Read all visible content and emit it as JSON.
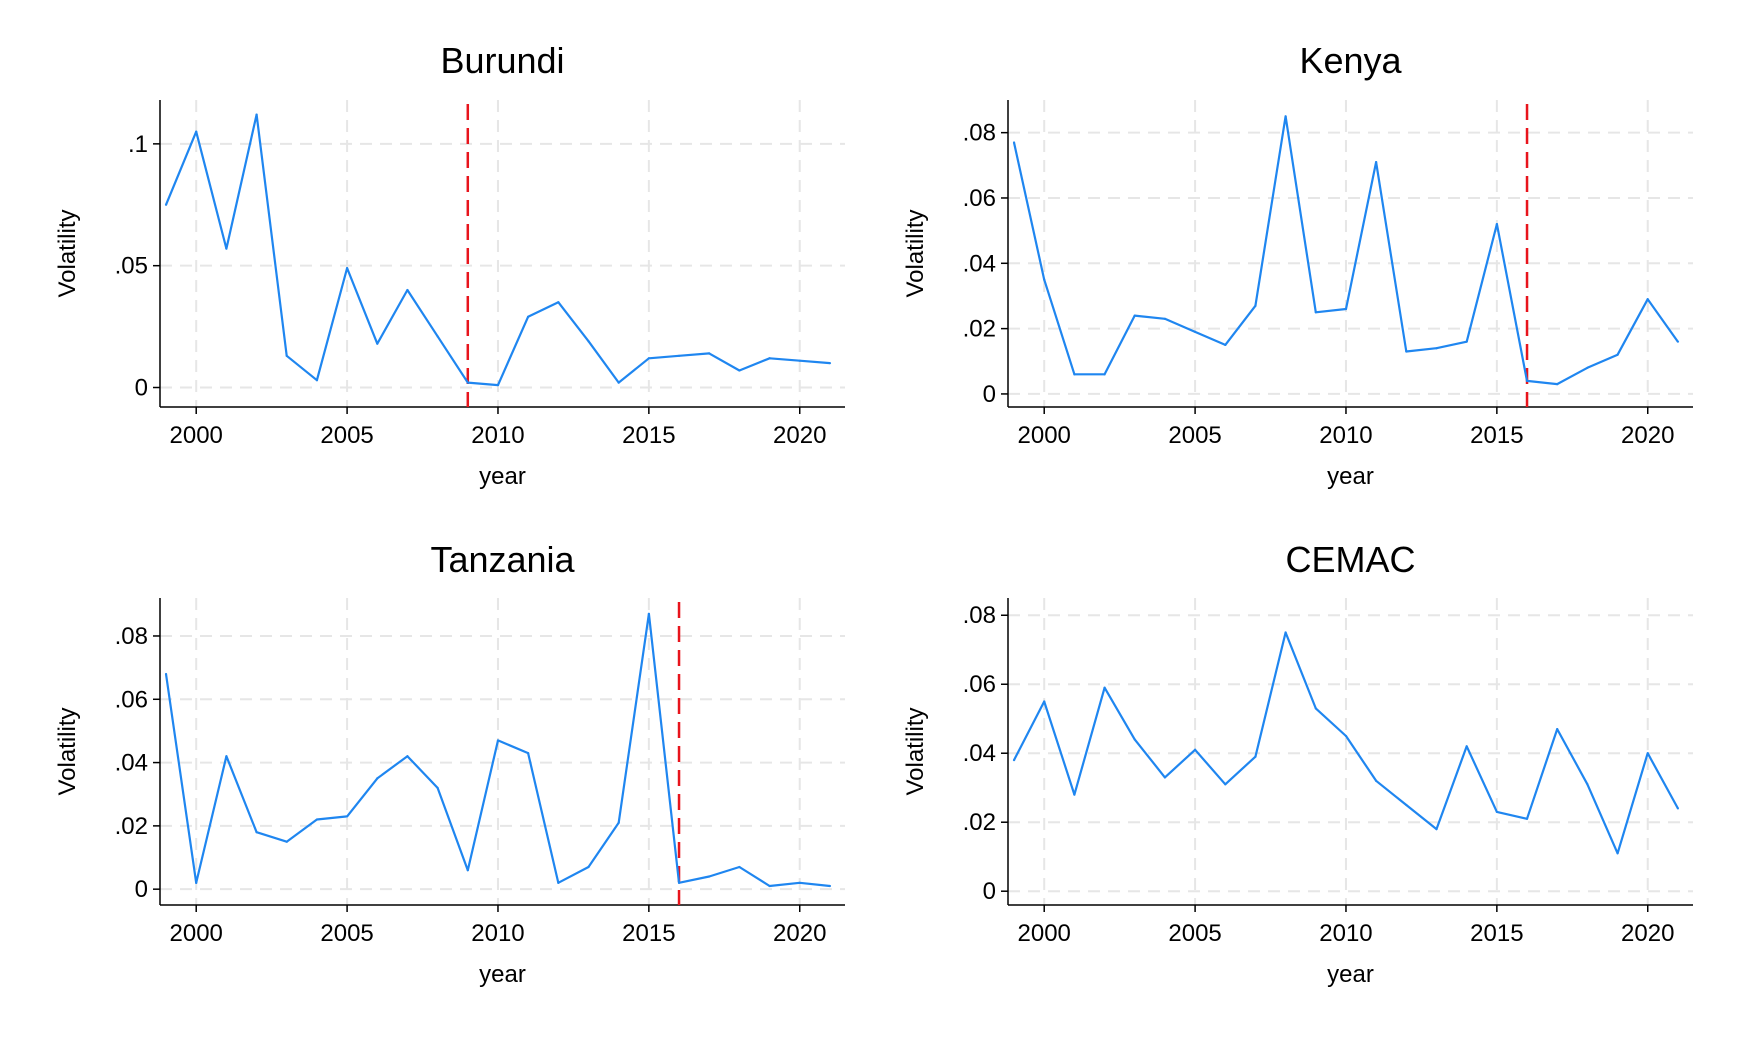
{
  "chart_data": [
    {
      "type": "line",
      "title": "Burundi",
      "xlabel": "year",
      "ylabel": "Volatility",
      "x_ticks": [
        2000,
        2005,
        2010,
        2015,
        2020
      ],
      "y_ticks": [
        0,
        0.05,
        0.1
      ],
      "y_tick_labels": [
        "0",
        ".05",
        ".1"
      ],
      "xlim": [
        1998.8,
        2021.5
      ],
      "ylim": [
        -0.008,
        0.118
      ],
      "grid": true,
      "line_color": "#1f86f0",
      "marker_color": "#e8141c",
      "reference_year": 2009,
      "x": [
        1999,
        2000,
        2001,
        2002,
        2003,
        2004,
        2005,
        2006,
        2007,
        2008,
        2009,
        2010,
        2011,
        2012,
        2013,
        2014,
        2015,
        2016,
        2017,
        2018,
        2019,
        2020,
        2021
      ],
      "values": [
        0.075,
        0.105,
        0.057,
        0.112,
        0.013,
        0.003,
        0.049,
        0.018,
        0.04,
        0.021,
        0.002,
        0.001,
        0.029,
        0.035,
        0.019,
        0.002,
        0.012,
        0.013,
        0.014,
        0.007,
        0.012,
        0.011,
        0.01
      ]
    },
    {
      "type": "line",
      "title": "Kenya",
      "xlabel": "year",
      "ylabel": "Volatility",
      "x_ticks": [
        2000,
        2005,
        2010,
        2015,
        2020
      ],
      "y_ticks": [
        0,
        0.02,
        0.04,
        0.06,
        0.08
      ],
      "y_tick_labels": [
        "0",
        ".02",
        ".04",
        ".06",
        ".08"
      ],
      "xlim": [
        1998.8,
        2021.5
      ],
      "ylim": [
        -0.004,
        0.09
      ],
      "grid": true,
      "line_color": "#1f86f0",
      "marker_color": "#e8141c",
      "reference_year": 2016,
      "x": [
        1999,
        2000,
        2001,
        2002,
        2003,
        2004,
        2005,
        2006,
        2007,
        2008,
        2009,
        2010,
        2011,
        2012,
        2013,
        2014,
        2015,
        2016,
        2017,
        2018,
        2019,
        2020,
        2021
      ],
      "values": [
        0.077,
        0.035,
        0.006,
        0.006,
        0.024,
        0.023,
        0.019,
        0.015,
        0.027,
        0.085,
        0.025,
        0.026,
        0.071,
        0.013,
        0.014,
        0.016,
        0.052,
        0.004,
        0.003,
        0.008,
        0.012,
        0.029,
        0.016
      ]
    },
    {
      "type": "line",
      "title": "Tanzania",
      "xlabel": "year",
      "ylabel": "Volatility",
      "x_ticks": [
        2000,
        2005,
        2010,
        2015,
        2020
      ],
      "y_ticks": [
        0,
        0.02,
        0.04,
        0.06,
        0.08
      ],
      "y_tick_labels": [
        "0",
        ".02",
        ".04",
        ".06",
        ".08"
      ],
      "xlim": [
        1998.8,
        2021.5
      ],
      "ylim": [
        -0.005,
        0.092
      ],
      "grid": true,
      "line_color": "#1f86f0",
      "marker_color": "#e8141c",
      "reference_year": 2016,
      "x": [
        1999,
        2000,
        2001,
        2002,
        2003,
        2004,
        2005,
        2006,
        2007,
        2008,
        2009,
        2010,
        2011,
        2012,
        2013,
        2014,
        2015,
        2016,
        2017,
        2018,
        2019,
        2020,
        2021
      ],
      "values": [
        0.068,
        0.002,
        0.042,
        0.018,
        0.015,
        0.022,
        0.023,
        0.035,
        0.042,
        0.032,
        0.006,
        0.047,
        0.043,
        0.002,
        0.007,
        0.021,
        0.087,
        0.002,
        0.004,
        0.007,
        0.001,
        0.002,
        0.001
      ]
    },
    {
      "type": "line",
      "title": "CEMAC",
      "xlabel": "year",
      "ylabel": "Volatility",
      "x_ticks": [
        2000,
        2005,
        2010,
        2015,
        2020
      ],
      "y_ticks": [
        0,
        0.02,
        0.04,
        0.06,
        0.08
      ],
      "y_tick_labels": [
        "0",
        ".02",
        ".04",
        ".06",
        ".08"
      ],
      "xlim": [
        1998.8,
        2021.5
      ],
      "ylim": [
        -0.004,
        0.085
      ],
      "grid": true,
      "line_color": "#1f86f0",
      "x": [
        1999,
        2000,
        2001,
        2002,
        2003,
        2004,
        2005,
        2006,
        2007,
        2008,
        2009,
        2010,
        2011,
        2012,
        2013,
        2014,
        2015,
        2016,
        2017,
        2018,
        2019,
        2020,
        2021
      ],
      "values": [
        0.038,
        0.055,
        0.028,
        0.059,
        0.044,
        0.033,
        0.041,
        0.031,
        0.039,
        0.075,
        0.053,
        0.045,
        0.032,
        0.025,
        0.018,
        0.042,
        0.023,
        0.021,
        0.047,
        0.031,
        0.011,
        0.04,
        0.024
      ]
    }
  ]
}
